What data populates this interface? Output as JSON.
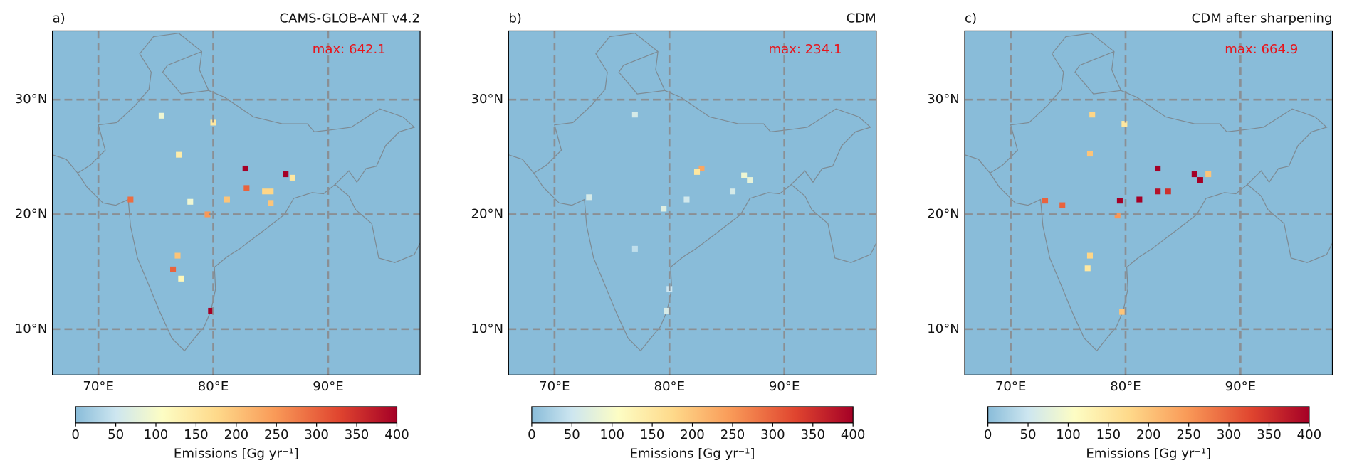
{
  "panels": [
    {
      "label": "a)",
      "title": "CAMS-GLOB-ANT v4.2",
      "max_label": "max: 642.1",
      "xlim": [
        66,
        98
      ],
      "ylim": [
        6,
        36
      ],
      "lon_ticks": [
        {
          "value": 70,
          "label": "70°E"
        },
        {
          "value": 80,
          "label": "80°E"
        },
        {
          "value": 90,
          "label": "90°E"
        }
      ],
      "lat_ticks": [
        {
          "value": 10,
          "label": "10°N"
        },
        {
          "value": 20,
          "label": "20°N"
        },
        {
          "value": 30,
          "label": "30°N"
        }
      ],
      "cells": [
        {
          "lon": 82.8,
          "lat": 24.0,
          "value": 642.1
        },
        {
          "lon": 79.8,
          "lat": 11.6,
          "value": 600
        },
        {
          "lon": 86.3,
          "lat": 23.5,
          "value": 550
        },
        {
          "lon": 82.9,
          "lat": 22.3,
          "value": 300
        },
        {
          "lon": 76.5,
          "lat": 15.2,
          "value": 300
        },
        {
          "lon": 72.8,
          "lat": 21.3,
          "value": 290
        },
        {
          "lon": 79.5,
          "lat": 20.0,
          "value": 250
        },
        {
          "lon": 84.5,
          "lat": 22.0,
          "value": 180
        },
        {
          "lon": 85.0,
          "lat": 22.0,
          "value": 180
        },
        {
          "lon": 80.0,
          "lat": 28.0,
          "value": 150
        },
        {
          "lon": 77.0,
          "lat": 25.2,
          "value": 140
        },
        {
          "lon": 76.9,
          "lat": 16.4,
          "value": 200
        },
        {
          "lon": 86.9,
          "lat": 23.2,
          "value": 150
        },
        {
          "lon": 75.5,
          "lat": 28.6,
          "value": 90
        },
        {
          "lon": 78.0,
          "lat": 21.1,
          "value": 90
        },
        {
          "lon": 81.2,
          "lat": 21.3,
          "value": 200
        },
        {
          "lon": 77.2,
          "lat": 14.4,
          "value": 120
        },
        {
          "lon": 85.0,
          "lat": 21.0,
          "value": 200
        }
      ],
      "colorbar": {
        "lim": [
          0,
          400
        ],
        "ticks": [
          0,
          50,
          100,
          150,
          200,
          250,
          300,
          350,
          400
        ],
        "label": "Emissions [Gg yr⁻¹]"
      }
    },
    {
      "label": "b)",
      "title": "CDM",
      "max_label": "max: 234.1",
      "xlim": [
        66,
        98
      ],
      "ylim": [
        6,
        36
      ],
      "lon_ticks": [
        {
          "value": 70,
          "label": "70°E"
        },
        {
          "value": 80,
          "label": "80°E"
        },
        {
          "value": 90,
          "label": "90°E"
        }
      ],
      "lat_ticks": [
        {
          "value": 10,
          "label": "10°N"
        },
        {
          "value": 20,
          "label": "20°N"
        },
        {
          "value": 30,
          "label": "30°N"
        }
      ],
      "cells": [
        {
          "lon": 82.8,
          "lat": 24.0,
          "value": 234.1
        },
        {
          "lon": 82.4,
          "lat": 23.7,
          "value": 150
        },
        {
          "lon": 86.5,
          "lat": 23.4,
          "value": 90
        },
        {
          "lon": 87.0,
          "lat": 23.0,
          "value": 80
        },
        {
          "lon": 79.5,
          "lat": 20.5,
          "value": 70
        },
        {
          "lon": 77.0,
          "lat": 28.7,
          "value": 60
        },
        {
          "lon": 73.0,
          "lat": 21.5,
          "value": 60
        },
        {
          "lon": 80.0,
          "lat": 13.5,
          "value": 50
        },
        {
          "lon": 77.0,
          "lat": 17.0,
          "value": 40
        },
        {
          "lon": 79.8,
          "lat": 11.6,
          "value": 60
        },
        {
          "lon": 85.5,
          "lat": 22.0,
          "value": 60
        },
        {
          "lon": 81.5,
          "lat": 21.3,
          "value": 55
        }
      ],
      "colorbar": {
        "lim": [
          0,
          400
        ],
        "ticks": [
          0,
          50,
          100,
          150,
          200,
          250,
          300,
          350,
          400
        ],
        "label": "Emissions [Gg yr⁻¹]"
      }
    },
    {
      "label": "c)",
      "title": "CDM after sharpening",
      "max_label": "max: 664.9",
      "xlim": [
        66,
        98
      ],
      "ylim": [
        6,
        36
      ],
      "lon_ticks": [
        {
          "value": 70,
          "label": "70°E"
        },
        {
          "value": 80,
          "label": "80°E"
        },
        {
          "value": 90,
          "label": "90°E"
        }
      ],
      "lat_ticks": [
        {
          "value": 10,
          "label": "10°N"
        },
        {
          "value": 20,
          "label": "20°N"
        },
        {
          "value": 30,
          "label": "30°N"
        }
      ],
      "cells": [
        {
          "lon": 86.5,
          "lat": 23.0,
          "value": 664.9
        },
        {
          "lon": 82.8,
          "lat": 24.0,
          "value": 600
        },
        {
          "lon": 79.5,
          "lat": 21.2,
          "value": 450
        },
        {
          "lon": 86.0,
          "lat": 23.5,
          "value": 400
        },
        {
          "lon": 81.2,
          "lat": 21.3,
          "value": 400
        },
        {
          "lon": 83.7,
          "lat": 22.0,
          "value": 350
        },
        {
          "lon": 82.8,
          "lat": 22.0,
          "value": 380
        },
        {
          "lon": 79.3,
          "lat": 19.9,
          "value": 250
        },
        {
          "lon": 76.9,
          "lat": 25.3,
          "value": 200
        },
        {
          "lon": 77.1,
          "lat": 28.7,
          "value": 180
        },
        {
          "lon": 73.0,
          "lat": 21.2,
          "value": 300
        },
        {
          "lon": 74.5,
          "lat": 20.8,
          "value": 300
        },
        {
          "lon": 79.7,
          "lat": 11.5,
          "value": 200
        },
        {
          "lon": 76.9,
          "lat": 16.4,
          "value": 180
        },
        {
          "lon": 87.2,
          "lat": 23.5,
          "value": 200
        },
        {
          "lon": 76.7,
          "lat": 15.3,
          "value": 150
        },
        {
          "lon": 79.9,
          "lat": 27.9,
          "value": 150
        }
      ],
      "colorbar": {
        "lim": [
          0,
          400
        ],
        "ticks": [
          0,
          50,
          100,
          150,
          200,
          250,
          300,
          350,
          400
        ],
        "label": "Emissions [Gg yr⁻¹]"
      }
    }
  ]
}
